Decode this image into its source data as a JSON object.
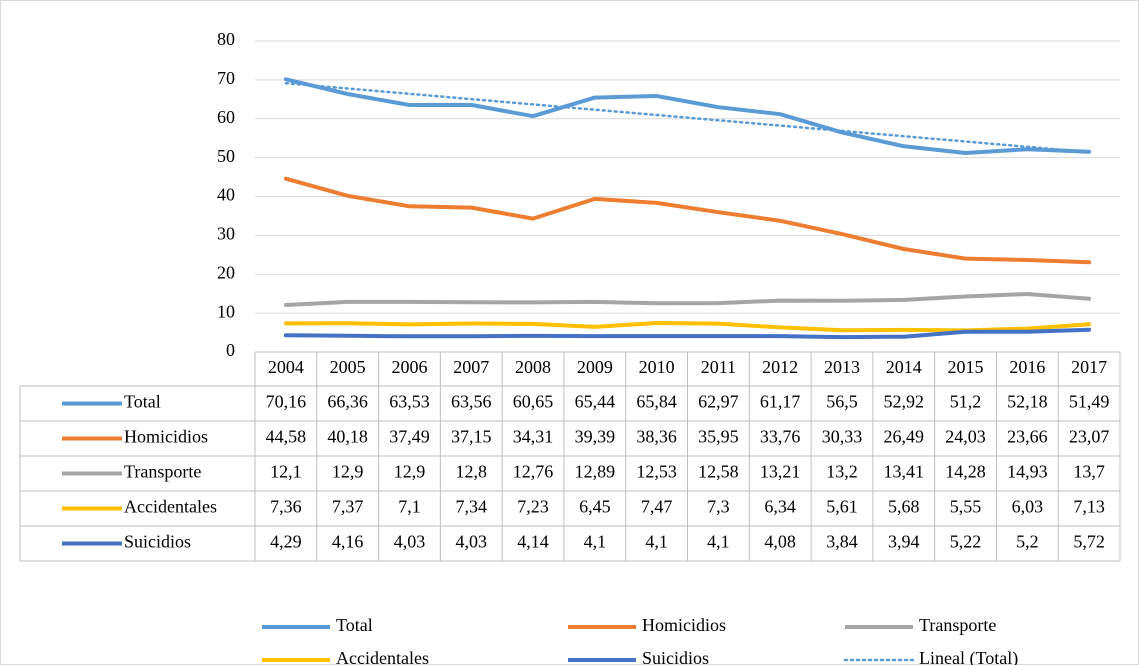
{
  "chart_data": {
    "type": "line",
    "categories": [
      "2004",
      "2005",
      "2006",
      "2007",
      "2008",
      "2009",
      "2010",
      "2011",
      "2012",
      "2013",
      "2014",
      "2015",
      "2016",
      "2017"
    ],
    "ylim": [
      0,
      80
    ],
    "yticks": [
      0,
      10,
      20,
      30,
      40,
      50,
      60,
      70,
      80
    ],
    "grid": true,
    "series": [
      {
        "name": "Total",
        "color": "#5b9bd5",
        "values": [
          70.16,
          66.36,
          63.53,
          63.56,
          60.65,
          65.44,
          65.84,
          62.97,
          61.17,
          56.5,
          52.92,
          51.2,
          52.18,
          51.49
        ],
        "value_labels": [
          "70,16",
          "66,36",
          "63,53",
          "63,56",
          "60,65",
          "65,44",
          "65,84",
          "62,97",
          "61,17",
          "56,5",
          "52,92",
          "51,2",
          "52,18",
          "51,49"
        ]
      },
      {
        "name": "Homicidios",
        "color": "#ed7d31",
        "values": [
          44.58,
          40.18,
          37.49,
          37.15,
          34.31,
          39.39,
          38.36,
          35.95,
          33.76,
          30.33,
          26.49,
          24.03,
          23.66,
          23.07
        ],
        "value_labels": [
          "44,58",
          "40,18",
          "37,49",
          "37,15",
          "34,31",
          "39,39",
          "38,36",
          "35,95",
          "33,76",
          "30,33",
          "26,49",
          "24,03",
          "23,66",
          "23,07"
        ]
      },
      {
        "name": "Transporte",
        "color": "#a5a5a5",
        "values": [
          12.1,
          12.9,
          12.9,
          12.8,
          12.76,
          12.89,
          12.53,
          12.58,
          13.21,
          13.2,
          13.41,
          14.28,
          14.93,
          13.7
        ],
        "value_labels": [
          "12,1",
          "12,9",
          "12,9",
          "12,8",
          "12,76",
          "12,89",
          "12,53",
          "12,58",
          "13,21",
          "13,2",
          "13,41",
          "14,28",
          "14,93",
          "13,7"
        ]
      },
      {
        "name": "Accidentales",
        "color": "#ffc000",
        "values": [
          7.36,
          7.37,
          7.1,
          7.34,
          7.23,
          6.45,
          7.47,
          7.3,
          6.34,
          5.61,
          5.68,
          5.55,
          6.03,
          7.13
        ],
        "value_labels": [
          "7,36",
          "7,37",
          "7,1",
          "7,34",
          "7,23",
          "6,45",
          "7,47",
          "7,3",
          "6,34",
          "5,61",
          "5,68",
          "5,55",
          "6,03",
          "7,13"
        ]
      },
      {
        "name": "Suicidios",
        "color": "#4472c4",
        "values": [
          4.29,
          4.16,
          4.03,
          4.03,
          4.14,
          4.1,
          4.1,
          4.1,
          4.08,
          3.84,
          3.94,
          5.22,
          5.2,
          5.72
        ],
        "value_labels": [
          "4,29",
          "4,16",
          "4,03",
          "4,03",
          "4,14",
          "4,1",
          "4,1",
          "4,1",
          "4,08",
          "3,84",
          "3,94",
          "5,22",
          "5,2",
          "5,72"
        ]
      }
    ],
    "trendline": {
      "name": "Lineal (Total)",
      "color": "#5b9bd5"
    }
  }
}
